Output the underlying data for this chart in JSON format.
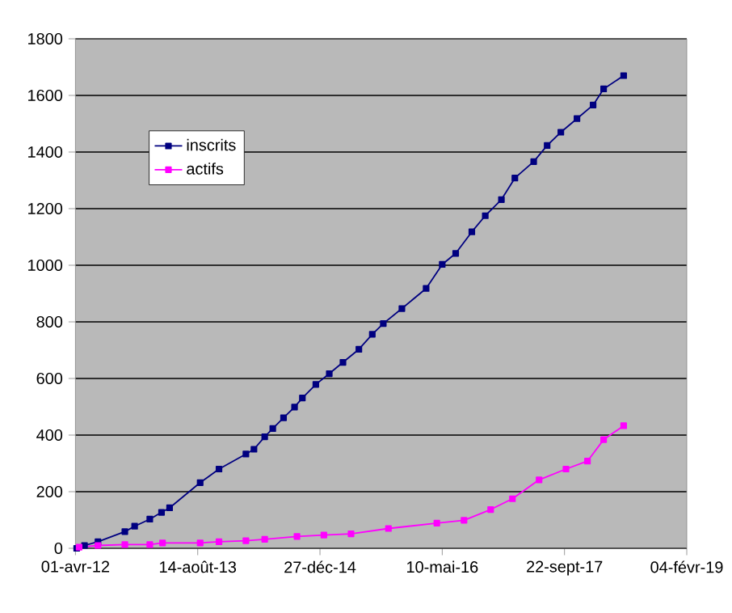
{
  "chart_data": {
    "type": "line",
    "xlim": [
      "2012-04-01",
      "2019-02-04"
    ],
    "xticks": [
      {
        "value": "2012-04-01",
        "label": "01-avr-12"
      },
      {
        "value": "2013-08-14",
        "label": "14-août-13"
      },
      {
        "value": "2014-12-27",
        "label": "27-déc-14"
      },
      {
        "value": "2016-05-10",
        "label": "10-mai-16"
      },
      {
        "value": "2017-09-22",
        "label": "22-sept-17"
      },
      {
        "value": "2019-02-04",
        "label": "04-févr-19"
      }
    ],
    "ylim": [
      0,
      1800
    ],
    "yticks": [
      0,
      200,
      400,
      600,
      800,
      1000,
      1200,
      1400,
      1600,
      1800
    ],
    "grid": "y",
    "legend": "top left",
    "marker": "square",
    "line_style": "solid",
    "series": [
      {
        "name": "inscrits",
        "color": "#000080",
        "x": [
          "2012-04-06",
          "2012-05-08",
          "2012-07-02",
          "2012-10-20",
          "2012-11-29",
          "2013-01-30",
          "2013-03-19",
          "2013-04-21",
          "2013-08-24",
          "2013-11-09",
          "2014-02-27",
          "2014-04-01",
          "2014-05-15",
          "2014-06-17",
          "2014-07-31",
          "2014-09-14",
          "2014-10-16",
          "2014-12-10",
          "2015-02-03",
          "2015-03-31",
          "2015-06-04",
          "2015-07-29",
          "2015-09-12",
          "2015-11-27",
          "2016-03-05",
          "2016-05-10",
          "2016-07-04",
          "2016-09-08",
          "2016-11-02",
          "2017-01-07",
          "2017-03-03",
          "2017-05-19",
          "2017-07-13",
          "2017-09-07",
          "2017-11-12",
          "2018-01-17",
          "2018-03-01",
          "2018-05-22"
        ],
        "values": [
          0,
          10,
          23,
          59,
          78,
          103,
          127,
          143,
          232,
          280,
          333,
          350,
          394,
          423,
          461,
          499,
          531,
          579,
          617,
          657,
          703,
          756,
          794,
          847,
          918,
          1003,
          1042,
          1118,
          1175,
          1232,
          1308,
          1366,
          1423,
          1470,
          1518,
          1566,
          1623,
          1670
        ]
      },
      {
        "name": "actifs",
        "color": "#ff00ff",
        "x": [
          "2012-04-16",
          "2012-07-02",
          "2012-10-20",
          "2013-01-30",
          "2013-03-23",
          "2013-08-24",
          "2013-11-09",
          "2014-02-27",
          "2014-05-15",
          "2014-09-24",
          "2015-01-12",
          "2015-05-03",
          "2015-10-03",
          "2016-04-18",
          "2016-08-07",
          "2016-11-24",
          "2017-02-21",
          "2017-06-10",
          "2017-09-28",
          "2017-12-25",
          "2018-03-01",
          "2018-05-22"
        ],
        "values": [
          4,
          10,
          13,
          13,
          19,
          19,
          23,
          27,
          32,
          42,
          47,
          51,
          70,
          89,
          99,
          137,
          175,
          242,
          280,
          308,
          384,
          433
        ]
      }
    ]
  }
}
